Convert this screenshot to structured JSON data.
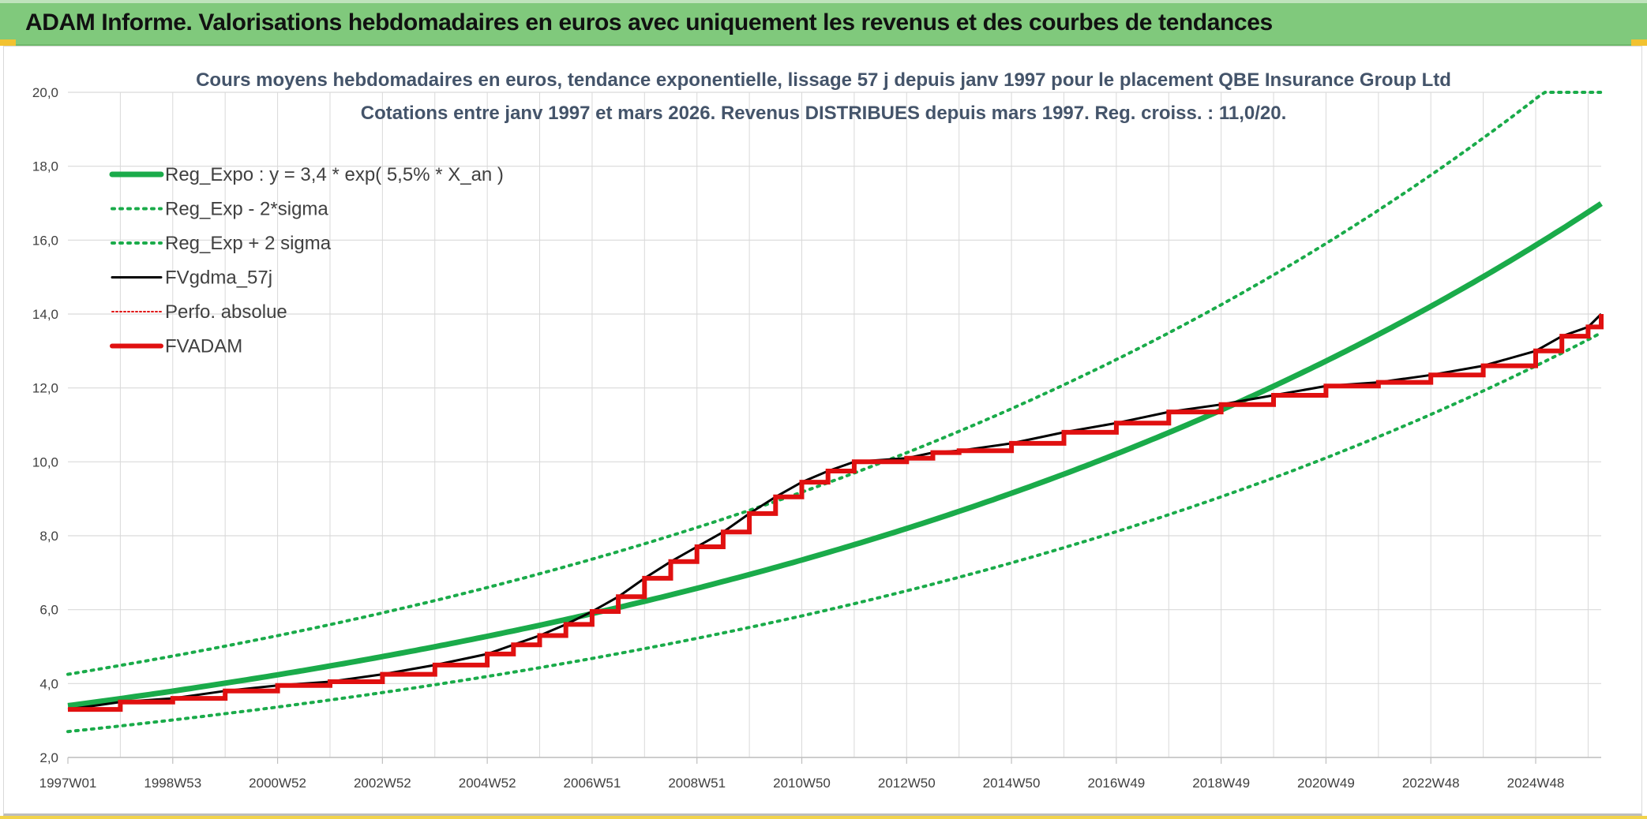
{
  "header": {
    "title": "ADAM Informe. Valorisations hebdomadaires en euros avec uniquement les revenus et des courbes de tendances"
  },
  "colors": {
    "banner": "#80c97c",
    "trend": "#1aab4a",
    "perf": "#000000",
    "adam": "#e01010",
    "grid": "#d9d9d9"
  },
  "chart_data": {
    "type": "line",
    "title": [
      "Cours moyens hebdomadaires en euros, tendance exponentielle, lissage 57 j depuis janv 1997 pour le placement QBE Insurance Group Ltd",
      "Cotations entre janv 1997 et mars 2026. Revenus DISTRIBUES depuis mars 1997. Reg. croiss. : 11,0/20."
    ],
    "ylim": [
      2,
      20
    ],
    "yticks": [
      "2,0",
      "4,0",
      "6,0",
      "8,0",
      "10,0",
      "12,0",
      "14,0",
      "16,0",
      "18,0",
      "20,0"
    ],
    "xlim": [
      1997.0,
      2026.25
    ],
    "xticks": [
      {
        "label": "1997W01",
        "x": 1997.0
      },
      {
        "label": "1998W53",
        "x": 1999.0
      },
      {
        "label": "2000W52",
        "x": 2001.0
      },
      {
        "label": "2002W52",
        "x": 2003.0
      },
      {
        "label": "2004W52",
        "x": 2005.0
      },
      {
        "label": "2006W51",
        "x": 2007.0
      },
      {
        "label": "2008W51",
        "x": 2009.0
      },
      {
        "label": "2010W50",
        "x": 2011.0
      },
      {
        "label": "2012W50",
        "x": 2013.0
      },
      {
        "label": "2014W50",
        "x": 2015.0
      },
      {
        "label": "2016W49",
        "x": 2017.0
      },
      {
        "label": "2018W49",
        "x": 2019.0
      },
      {
        "label": "2020W49",
        "x": 2021.0
      },
      {
        "label": "2022W48",
        "x": 2023.0
      },
      {
        "label": "2024W48",
        "x": 2025.0
      }
    ],
    "legend": [
      {
        "label": "Reg_Expo : y = 3,4 * exp( 5,5% *  X_an )",
        "style": "thick-green"
      },
      {
        "label": "Reg_Exp - 2*sigma",
        "style": "dotted-green"
      },
      {
        "label": "Reg_Exp + 2 sigma",
        "style": "dotted-green"
      },
      {
        "label": "FVgdma_57j",
        "style": "thin-black"
      },
      {
        "label": "Perfo. absolue",
        "style": "dotted-red"
      },
      {
        "label": "FVADAM",
        "style": "thick-red"
      }
    ],
    "series": [
      {
        "name": "Reg_Expo",
        "model": "exp",
        "a": 3.4,
        "rate": 0.055
      },
      {
        "name": "Reg_Exp - 2*sigma",
        "model": "exp",
        "a": 2.7,
        "rate": 0.055
      },
      {
        "name": "Reg_Exp + 2 sigma",
        "model": "exp",
        "a": 4.25,
        "rate": 0.055,
        "cap": 20
      },
      {
        "name": "FVADAM",
        "x": [
          1997.0,
          1998.0,
          1999.0,
          2000.0,
          2001.0,
          2002.0,
          2003.0,
          2004.0,
          2005.0,
          2005.5,
          2006.0,
          2006.5,
          2007.0,
          2007.5,
          2008.0,
          2008.5,
          2009.0,
          2009.5,
          2010.0,
          2010.5,
          2011.0,
          2011.5,
          2012.0,
          2013.0,
          2013.5,
          2014.0,
          2015.0,
          2016.0,
          2017.0,
          2018.0,
          2019.0,
          2020.0,
          2021.0,
          2022.0,
          2023.0,
          2024.0,
          2025.0,
          2025.5,
          2026.0,
          2026.25
        ],
        "values": [
          3.3,
          3.5,
          3.6,
          3.8,
          3.95,
          4.05,
          4.25,
          4.5,
          4.8,
          5.05,
          5.3,
          5.6,
          5.95,
          6.35,
          6.85,
          7.3,
          7.7,
          8.1,
          8.6,
          9.05,
          9.45,
          9.75,
          10.0,
          10.1,
          10.25,
          10.3,
          10.5,
          10.8,
          11.05,
          11.35,
          11.55,
          11.8,
          12.05,
          12.15,
          12.35,
          12.6,
          13.0,
          13.4,
          13.65,
          14.0
        ]
      }
    ]
  }
}
